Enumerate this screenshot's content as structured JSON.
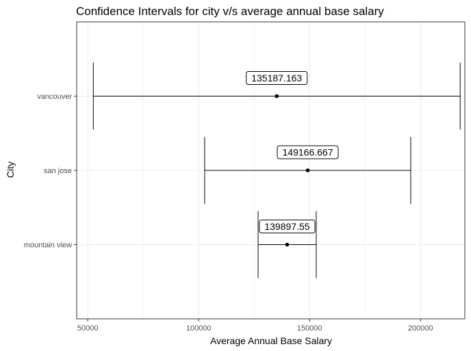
{
  "chart_data": {
    "type": "errorbar",
    "title": "Confidence Intervals for city v/s average annual base salary",
    "xlabel": "Average Annual Base Salary",
    "ylabel": "City",
    "xlim": [
      45000,
      220000
    ],
    "x_ticks": [
      50000,
      100000,
      150000,
      200000
    ],
    "x_tick_labels": [
      "50000",
      "100000",
      "150000",
      "200000"
    ],
    "grid": true,
    "legend": "none",
    "categories": [
      "mountain view",
      "san jose",
      "vancouver"
    ],
    "series": [
      {
        "points": [
          {
            "city": "mountain view",
            "mean": 139897.55,
            "label": "139897.55",
            "lower": 126800,
            "upper": 153000
          },
          {
            "city": "san jose",
            "mean": 149166.667,
            "label": "149166.667",
            "lower": 102700,
            "upper": 195600
          },
          {
            "city": "vancouver",
            "mean": 135187.163,
            "label": "135187.163",
            "lower": 52500,
            "upper": 217900
          }
        ]
      }
    ],
    "colors": {
      "mark": "#000000",
      "grid": "#ebebeb",
      "panel_border": "#333333",
      "tick_text": "#4d4d4d"
    }
  }
}
